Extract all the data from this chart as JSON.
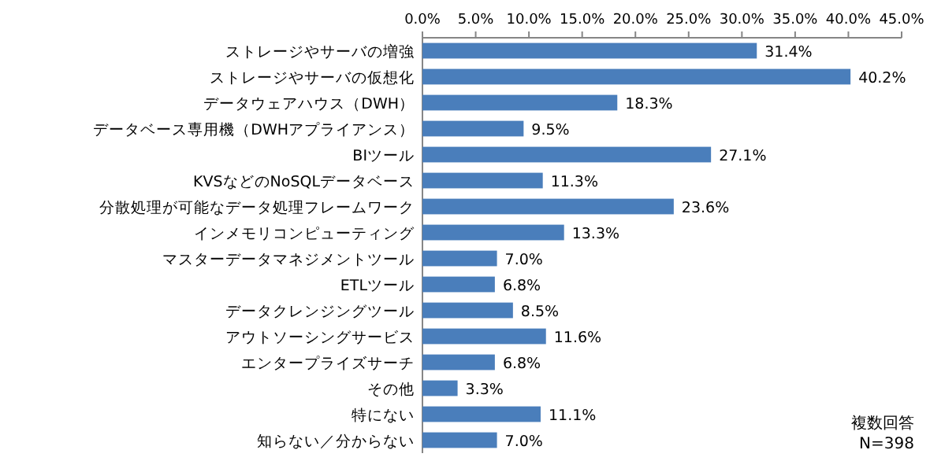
{
  "chart_data": {
    "type": "bar",
    "orientation": "horizontal",
    "categories": [
      "ストレージやサーバの増強",
      "ストレージやサーバの仮想化",
      "データウェアハウス（DWH）",
      "データベース専用機（DWHアプライアンス）",
      "BIツール",
      "KVSなどのNoSQLデータベース",
      "分散処理が可能なデータ処理フレームワーク",
      "インメモリコンピューティング",
      "マスターデータマネジメントツール",
      "ETLツール",
      "データクレンジングツール",
      "アウトソーシングサービス",
      "エンタープライズサーチ",
      "その他",
      "特にない",
      "知らない／分からない"
    ],
    "values": [
      31.4,
      40.2,
      18.3,
      9.5,
      27.1,
      11.3,
      23.6,
      13.3,
      7.0,
      6.8,
      8.5,
      11.6,
      6.8,
      3.3,
      11.1,
      7.0
    ],
    "value_labels": [
      "31.4%",
      "40.2%",
      "18.3%",
      "9.5%",
      "27.1%",
      "11.3%",
      "23.6%",
      "13.3%",
      "7.0%",
      "6.8%",
      "8.5%",
      "11.6%",
      "6.8%",
      "3.3%",
      "11.1%",
      "7.0%"
    ],
    "color": "#4a7ebb",
    "xlim": [
      0,
      45
    ],
    "xticks": [
      {
        "value": 0,
        "label": "0.0%"
      },
      {
        "value": 5,
        "label": "5.0%"
      },
      {
        "value": 10,
        "label": "10.0%"
      },
      {
        "value": 15,
        "label": "15.0%"
      },
      {
        "value": 20,
        "label": "20.0%"
      },
      {
        "value": 25,
        "label": "25.0%"
      },
      {
        "value": 30,
        "label": "30.0%"
      },
      {
        "value": 35,
        "label": "35.0%"
      },
      {
        "value": 40,
        "label": "40.0%"
      },
      {
        "value": 45,
        "label": "45.0%"
      }
    ],
    "grid": false,
    "annotations": [
      "複数回答",
      "N=398"
    ]
  }
}
